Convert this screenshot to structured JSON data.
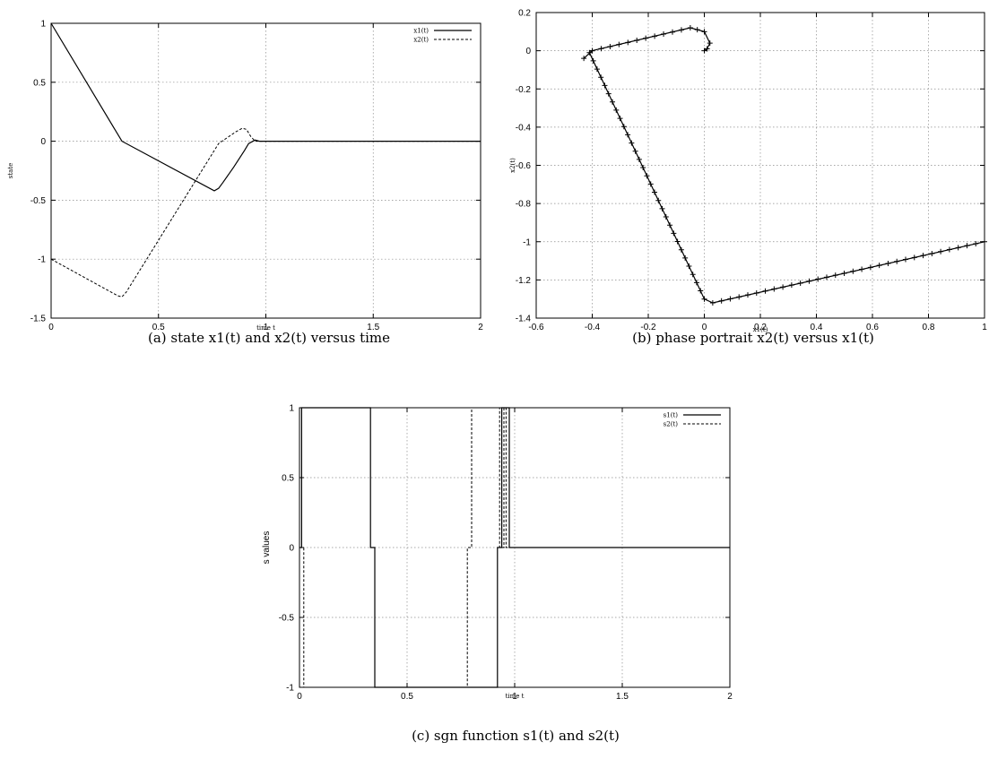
{
  "chart_data": [
    {
      "id": "a",
      "type": "line",
      "caption": "(a)  state x1(t) and x2(t) versus time",
      "xlabel": "time t",
      "ylabel": "state",
      "xlim": [
        0,
        2
      ],
      "ylim": [
        -1.5,
        1
      ],
      "xticks": [
        0,
        0.5,
        1,
        1.5,
        2
      ],
      "xtick_labels": [
        "0",
        "0.5",
        "1",
        "1.5",
        "2"
      ],
      "yticks": [
        -1.5,
        -1,
        -0.5,
        0,
        0.5,
        1
      ],
      "ytick_labels": [
        "-1.5",
        "-1",
        "-0.5",
        "0",
        "0.5",
        "1"
      ],
      "grid": true,
      "legend_position": "top-right",
      "series": [
        {
          "name": "x1(t)",
          "style": "solid",
          "x": [
            0,
            0.33,
            0.76,
            0.78,
            0.8,
            0.85,
            0.9,
            0.92,
            0.95,
            0.97,
            1.0,
            1.5,
            2.0
          ],
          "y": [
            1,
            0.0,
            -0.42,
            -0.4,
            -0.35,
            -0.22,
            -0.08,
            -0.02,
            0.01,
            0.0,
            0.0,
            0.0,
            0.0
          ]
        },
        {
          "name": "x2(t)",
          "style": "dashed",
          "x": [
            0,
            0.31,
            0.33,
            0.35,
            0.78,
            0.86,
            0.89,
            0.91,
            0.93,
            0.95,
            0.97,
            1.0,
            1.5,
            2.0
          ],
          "y": [
            -1,
            -1.31,
            -1.32,
            -1.28,
            -0.02,
            0.08,
            0.11,
            0.1,
            0.04,
            0.0,
            0.0,
            0.0,
            0.0,
            0.0
          ]
        }
      ]
    },
    {
      "id": "b",
      "type": "line",
      "caption": "(b)  phase portrait x2(t) versus x1(t)",
      "xlabel": "x1(t)",
      "ylabel": "x2(t)",
      "xlim": [
        -0.6,
        1
      ],
      "ylim": [
        -1.4,
        0.2
      ],
      "xticks": [
        -0.6,
        -0.4,
        -0.2,
        0,
        0.2,
        0.4,
        0.6,
        0.8,
        1
      ],
      "xtick_labels": [
        "-0.6",
        "-0.4",
        "-0.2",
        "0",
        "0.2",
        "0.4",
        "0.6",
        "0.8",
        "1"
      ],
      "yticks": [
        -1.4,
        -1.2,
        -1,
        -0.8,
        -0.6,
        -0.4,
        -0.2,
        0,
        0.2
      ],
      "ytick_labels": [
        "-1.4",
        "-1.2",
        "-1",
        "-0.8",
        "-0.6",
        "-0.4",
        "-0.2",
        "0",
        "0.2"
      ],
      "grid": true,
      "series": [
        {
          "name": "",
          "style": "solid-markers",
          "x": [
            1,
            0.03,
            0.0,
            -0.41,
            -0.4,
            -0.43,
            -0.4,
            -0.05,
            0.0,
            0.02,
            0.01,
            0.0,
            0.0
          ],
          "y": [
            -1,
            -1.32,
            -1.3,
            -0.01,
            0.0,
            -0.04,
            0.0,
            0.12,
            0.1,
            0.04,
            0.01,
            0.0,
            0.0
          ]
        }
      ]
    },
    {
      "id": "c",
      "type": "line",
      "caption": "(c)  sgn function s1(t) and s2(t)",
      "xlabel": "time t",
      "ylabel": "s values",
      "xlim": [
        0,
        2
      ],
      "ylim": [
        -1,
        1
      ],
      "xticks": [
        0,
        0.5,
        1,
        1.5,
        2
      ],
      "xtick_labels": [
        "0",
        "0.5",
        "1",
        "1.5",
        "2"
      ],
      "yticks": [
        -1,
        -0.5,
        0,
        0.5,
        1
      ],
      "ytick_labels": [
        "-1",
        "-0.5",
        "0",
        "0.5",
        "1"
      ],
      "grid": true,
      "legend_position": "top-right",
      "series": [
        {
          "name": "s1(t)",
          "style": "solid",
          "x": [
            0,
            0.01,
            0.01,
            0.33,
            0.33,
            0.35,
            0.35,
            0.92,
            0.92,
            0.94,
            0.94,
            0.975,
            0.975,
            2.0
          ],
          "y": [
            0,
            0,
            1,
            1,
            0,
            0,
            -1,
            -1,
            0,
            0,
            1,
            1,
            0,
            0
          ]
        },
        {
          "name": "s2(t)",
          "style": "dashed",
          "x": [
            0,
            0.02,
            0.02,
            0.78,
            0.78,
            0.8,
            0.8,
            0.93,
            0.93,
            0.95,
            0.95,
            0.96,
            0.96,
            2.0
          ],
          "y": [
            0,
            0,
            -1,
            -1,
            0,
            0,
            1,
            1,
            0,
            0,
            1,
            1,
            0,
            0
          ]
        }
      ]
    }
  ]
}
